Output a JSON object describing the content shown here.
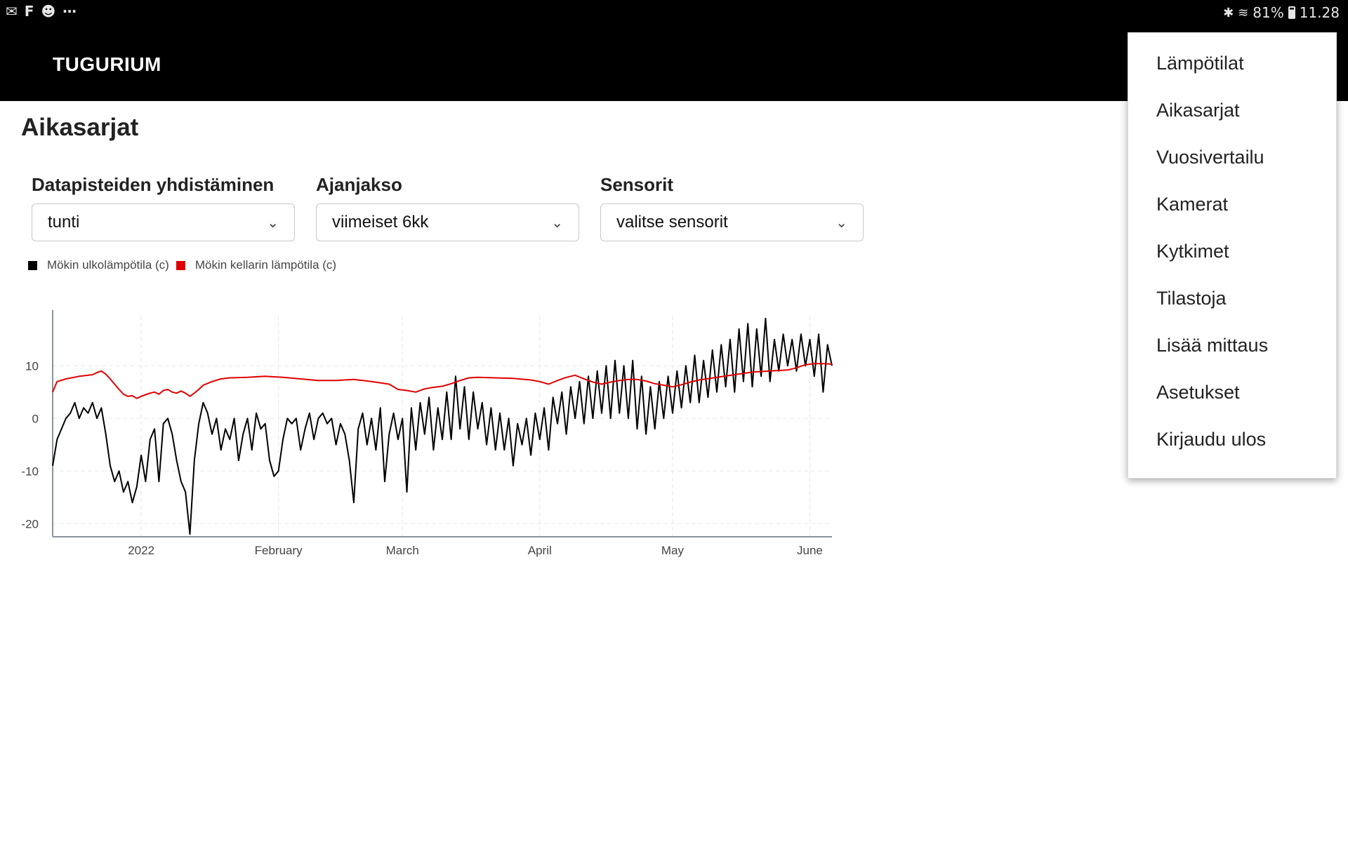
{
  "statusbar": {
    "left_icons": [
      "gmail-icon",
      "f-icon",
      "panda-icon",
      "more-icon"
    ],
    "battery": "81%",
    "time": "11.28"
  },
  "appbar": {
    "brand": "TUGURIUM"
  },
  "page": {
    "title": "Aikasarjat"
  },
  "filters": [
    {
      "label": "Datapisteiden yhdistäminen",
      "value": "tunti"
    },
    {
      "label": "Ajanjakso",
      "value": "viimeiset 6kk"
    },
    {
      "label": "Sensorit",
      "value": "valitse sensorit"
    }
  ],
  "menu": {
    "items": [
      "Lämpötilat",
      "Aikasarjat",
      "Vuosivertailu",
      "Kamerat",
      "Kytkimet",
      "Tilastoja",
      "Lisää mittaus",
      "Asetukset",
      "Kirjaudu ulos"
    ]
  },
  "chart_data": {
    "type": "line",
    "title": "",
    "xlabel": "",
    "ylabel": "",
    "x_ticks": [
      "2022",
      "February",
      "March",
      "April",
      "May",
      "June"
    ],
    "y_ticks": [
      10,
      0,
      -10,
      -20
    ],
    "ylim": [
      -22.5,
      19.5
    ],
    "x_range_days": [
      -20,
      156
    ],
    "x_tick_days": [
      0,
      31,
      59,
      90,
      120,
      151
    ],
    "grid": true,
    "legend_position": "top-left",
    "series": [
      {
        "name": "Mökin ulkolämpötila (c)",
        "color": "#000000",
        "values_day_temp": [
          [
            -20,
            -9
          ],
          [
            -19,
            -4
          ],
          [
            -18,
            -2
          ],
          [
            -17,
            0
          ],
          [
            -16,
            1
          ],
          [
            -15,
            3
          ],
          [
            -14,
            0
          ],
          [
            -13,
            2
          ],
          [
            -12,
            1
          ],
          [
            -11,
            3
          ],
          [
            -10,
            0
          ],
          [
            -9,
            2
          ],
          [
            -8,
            -3
          ],
          [
            -7,
            -9
          ],
          [
            -6,
            -12
          ],
          [
            -5,
            -10
          ],
          [
            -4,
            -14
          ],
          [
            -3,
            -12
          ],
          [
            -2,
            -16
          ],
          [
            -1,
            -13
          ],
          [
            0,
            -7
          ],
          [
            1,
            -12
          ],
          [
            2,
            -4
          ],
          [
            3,
            -2
          ],
          [
            4,
            -12
          ],
          [
            5,
            -1
          ],
          [
            6,
            0
          ],
          [
            7,
            -3
          ],
          [
            8,
            -8
          ],
          [
            9,
            -12
          ],
          [
            10,
            -14
          ],
          [
            11,
            -22
          ],
          [
            12,
            -8
          ],
          [
            13,
            -1
          ],
          [
            14,
            3
          ],
          [
            15,
            1
          ],
          [
            16,
            -3
          ],
          [
            17,
            0
          ],
          [
            18,
            -6
          ],
          [
            19,
            -2
          ],
          [
            20,
            -4
          ],
          [
            21,
            0
          ],
          [
            22,
            -8
          ],
          [
            23,
            -3
          ],
          [
            24,
            0
          ],
          [
            25,
            -6
          ],
          [
            26,
            1
          ],
          [
            27,
            -2
          ],
          [
            28,
            -1
          ],
          [
            29,
            -8
          ],
          [
            30,
            -11
          ],
          [
            31,
            -10
          ],
          [
            32,
            -4
          ],
          [
            33,
            0
          ],
          [
            34,
            -1
          ],
          [
            35,
            0
          ],
          [
            36,
            -6
          ],
          [
            37,
            -2
          ],
          [
            38,
            1
          ],
          [
            39,
            -4
          ],
          [
            40,
            0
          ],
          [
            41,
            1
          ],
          [
            42,
            -1
          ],
          [
            43,
            0
          ],
          [
            44,
            -5
          ],
          [
            45,
            -1
          ],
          [
            46,
            -3
          ],
          [
            47,
            -8
          ],
          [
            48,
            -16
          ],
          [
            49,
            -2
          ],
          [
            50,
            1
          ],
          [
            51,
            -5
          ],
          [
            52,
            0
          ],
          [
            53,
            -6
          ],
          [
            54,
            2
          ],
          [
            55,
            -12
          ],
          [
            56,
            -3
          ],
          [
            57,
            1
          ],
          [
            58,
            -4
          ],
          [
            59,
            0
          ],
          [
            60,
            -14
          ],
          [
            61,
            2
          ],
          [
            62,
            -6
          ],
          [
            63,
            3
          ],
          [
            64,
            -3
          ],
          [
            65,
            4
          ],
          [
            66,
            -6
          ],
          [
            67,
            2
          ],
          [
            68,
            -4
          ],
          [
            69,
            5
          ],
          [
            70,
            -4
          ],
          [
            71,
            8
          ],
          [
            72,
            -2
          ],
          [
            73,
            6
          ],
          [
            74,
            -4
          ],
          [
            75,
            5
          ],
          [
            76,
            -2
          ],
          [
            77,
            3
          ],
          [
            78,
            -5
          ],
          [
            79,
            2
          ],
          [
            80,
            -6
          ],
          [
            81,
            1
          ],
          [
            82,
            -6
          ],
          [
            83,
            0
          ],
          [
            84,
            -9
          ],
          [
            85,
            -1
          ],
          [
            86,
            -5
          ],
          [
            87,
            0
          ],
          [
            88,
            -7
          ],
          [
            89,
            1
          ],
          [
            90,
            -4
          ],
          [
            91,
            2
          ],
          [
            92,
            -6
          ],
          [
            93,
            4
          ],
          [
            94,
            -1
          ],
          [
            95,
            5
          ],
          [
            96,
            -3
          ],
          [
            97,
            6
          ],
          [
            98,
            0
          ],
          [
            99,
            7
          ],
          [
            100,
            -1
          ],
          [
            101,
            8
          ],
          [
            102,
            0
          ],
          [
            103,
            9
          ],
          [
            104,
            1
          ],
          [
            105,
            10
          ],
          [
            106,
            0
          ],
          [
            107,
            11
          ],
          [
            108,
            1
          ],
          [
            109,
            10
          ],
          [
            110,
            0
          ],
          [
            111,
            11
          ],
          [
            112,
            -2
          ],
          [
            113,
            8
          ],
          [
            114,
            -3
          ],
          [
            115,
            6
          ],
          [
            116,
            -2
          ],
          [
            117,
            7
          ],
          [
            118,
            0
          ],
          [
            119,
            8
          ],
          [
            120,
            1
          ],
          [
            121,
            9
          ],
          [
            122,
            2
          ],
          [
            123,
            10
          ],
          [
            124,
            3
          ],
          [
            125,
            12
          ],
          [
            126,
            3
          ],
          [
            127,
            11
          ],
          [
            128,
            4
          ],
          [
            129,
            13
          ],
          [
            130,
            5
          ],
          [
            131,
            14
          ],
          [
            132,
            6
          ],
          [
            133,
            15
          ],
          [
            134,
            5
          ],
          [
            135,
            17
          ],
          [
            136,
            7
          ],
          [
            137,
            18
          ],
          [
            138,
            6
          ],
          [
            139,
            17
          ],
          [
            140,
            8
          ],
          [
            141,
            19
          ],
          [
            142,
            7
          ],
          [
            143,
            15
          ],
          [
            144,
            9
          ],
          [
            145,
            16
          ],
          [
            146,
            10
          ],
          [
            147,
            15
          ],
          [
            148,
            9
          ],
          [
            149,
            16
          ],
          [
            150,
            10
          ],
          [
            151,
            15
          ],
          [
            152,
            8
          ],
          [
            153,
            16
          ],
          [
            154,
            5
          ],
          [
            155,
            14
          ],
          [
            156,
            10
          ]
        ]
      },
      {
        "name": "Mökin kellarin lämpötila (c)",
        "color": "#e00000",
        "values_day_temp": [
          [
            -20,
            5
          ],
          [
            -19,
            7
          ],
          [
            -17,
            7.5
          ],
          [
            -14,
            8
          ],
          [
            -11,
            8.3
          ],
          [
            -10,
            8.7
          ],
          [
            -9,
            9
          ],
          [
            -8,
            8.4
          ],
          [
            -7,
            7.5
          ],
          [
            -6,
            6.5
          ],
          [
            -5,
            5.5
          ],
          [
            -4,
            4.6
          ],
          [
            -3,
            4.2
          ],
          [
            -2,
            4.3
          ],
          [
            -1,
            3.8
          ],
          [
            0,
            4.2
          ],
          [
            1,
            4.5
          ],
          [
            2,
            4.8
          ],
          [
            3,
            5
          ],
          [
            4,
            4.6
          ],
          [
            5,
            5.3
          ],
          [
            6,
            5.5
          ],
          [
            7,
            5
          ],
          [
            8,
            4.8
          ],
          [
            9,
            5.2
          ],
          [
            10,
            4.8
          ],
          [
            11,
            4.2
          ],
          [
            12,
            4.8
          ],
          [
            13,
            5.5
          ],
          [
            14,
            6.3
          ],
          [
            16,
            7
          ],
          [
            18,
            7.5
          ],
          [
            20,
            7.7
          ],
          [
            24,
            7.8
          ],
          [
            28,
            8
          ],
          [
            32,
            7.8
          ],
          [
            36,
            7.5
          ],
          [
            40,
            7.2
          ],
          [
            44,
            7.2
          ],
          [
            48,
            7.4
          ],
          [
            52,
            7.0
          ],
          [
            56,
            6.5
          ],
          [
            58,
            5.5
          ],
          [
            60,
            5.3
          ],
          [
            62,
            5.0
          ],
          [
            64,
            5.6
          ],
          [
            66,
            5.9
          ],
          [
            68,
            6.1
          ],
          [
            70,
            6.6
          ],
          [
            72,
            7.2
          ],
          [
            74,
            7.7
          ],
          [
            76,
            7.8
          ],
          [
            80,
            7.7
          ],
          [
            84,
            7.6
          ],
          [
            88,
            7.3
          ],
          [
            90,
            7.0
          ],
          [
            92,
            6.5
          ],
          [
            94,
            7.2
          ],
          [
            96,
            7.8
          ],
          [
            98,
            8.2
          ],
          [
            100,
            7.5
          ],
          [
            102,
            6.9
          ],
          [
            104,
            6.5
          ],
          [
            106,
            6.9
          ],
          [
            108,
            7.2
          ],
          [
            110,
            7.4
          ],
          [
            112,
            7.4
          ],
          [
            114,
            7.1
          ],
          [
            116,
            6.6
          ],
          [
            118,
            6.3
          ],
          [
            120,
            6.0
          ],
          [
            122,
            6.4
          ],
          [
            124,
            6.9
          ],
          [
            126,
            7.3
          ],
          [
            130,
            7.8
          ],
          [
            134,
            8.3
          ],
          [
            138,
            8.8
          ],
          [
            142,
            9.0
          ],
          [
            146,
            9.2
          ],
          [
            148,
            9.6
          ],
          [
            150,
            10.2
          ],
          [
            152,
            10.4
          ],
          [
            154,
            10.4
          ],
          [
            156,
            10.3
          ]
        ]
      }
    ]
  }
}
